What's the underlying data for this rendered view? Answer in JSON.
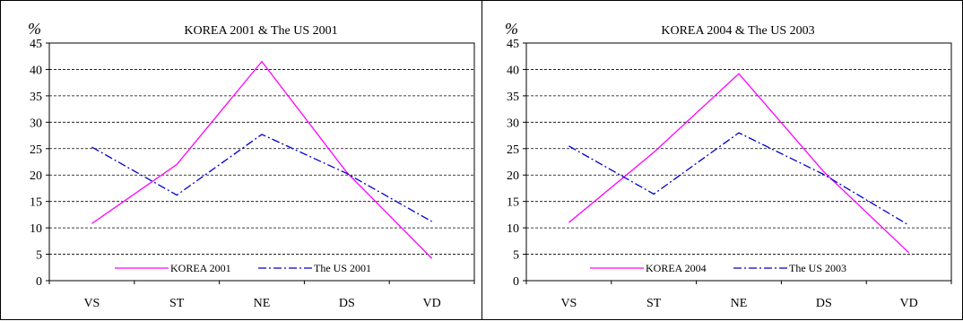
{
  "chart_data": [
    {
      "type": "line",
      "title": "KOREA 2001 & The US 2001",
      "ylabel": "%",
      "xlabel": "",
      "categories": [
        "VS",
        "ST",
        "NE",
        "DS",
        "VD"
      ],
      "ylim": [
        0,
        45
      ],
      "yticks": [
        0,
        5,
        10,
        15,
        20,
        25,
        30,
        35,
        40,
        45
      ],
      "grid": true,
      "legend": "bottom",
      "series": [
        {
          "name": "KOREA 2001",
          "values": [
            10.8,
            22,
            41.5,
            20.5,
            4.2
          ],
          "color": "#ff00ff",
          "style": "solid"
        },
        {
          "name": "The US 2001",
          "values": [
            25.3,
            16.2,
            27.7,
            20.3,
            11.2
          ],
          "color": "#0000cc",
          "style": "dashdot"
        }
      ]
    },
    {
      "type": "line",
      "title": "KOREA 2004 & The US 2003",
      "ylabel": "%",
      "xlabel": "",
      "categories": [
        "VS",
        "ST",
        "NE",
        "DS",
        "VD"
      ],
      "ylim": [
        0,
        45
      ],
      "yticks": [
        0,
        5,
        10,
        15,
        20,
        25,
        30,
        35,
        40,
        45
      ],
      "grid": true,
      "legend": "bottom",
      "series": [
        {
          "name": "KOREA 2004",
          "values": [
            11,
            24.3,
            39.2,
            20.6,
            5.3
          ],
          "color": "#ff00ff",
          "style": "solid"
        },
        {
          "name": "The US 2003",
          "values": [
            25.5,
            16.4,
            28,
            20.1,
            10.5
          ],
          "color": "#0000cc",
          "style": "dashdot"
        }
      ]
    }
  ]
}
